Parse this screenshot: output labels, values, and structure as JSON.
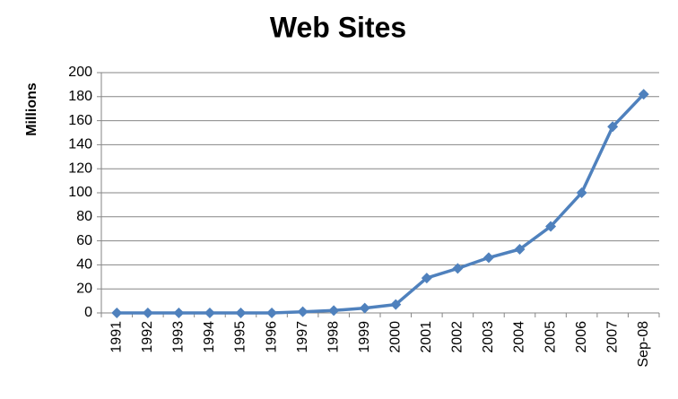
{
  "chart_data": {
    "type": "line",
    "title": "Web Sites",
    "y_label": "Millions",
    "categories": [
      "1991",
      "1992",
      "1993",
      "1994",
      "1995",
      "1996",
      "1997",
      "1998",
      "1999",
      "2000",
      "2001",
      "2002",
      "2003",
      "2004",
      "2005",
      "2006",
      "2007",
      "Sep-08"
    ],
    "values": [
      0,
      0,
      0,
      0,
      0,
      0,
      1,
      2,
      4,
      7,
      29,
      37,
      46,
      53,
      72,
      100,
      155,
      182
    ],
    "color": "#4f81bd",
    "ylim": [
      0,
      200
    ],
    "yticks": [
      0,
      20,
      40,
      60,
      80,
      100,
      120,
      140,
      160,
      180,
      200
    ],
    "grid": true
  }
}
